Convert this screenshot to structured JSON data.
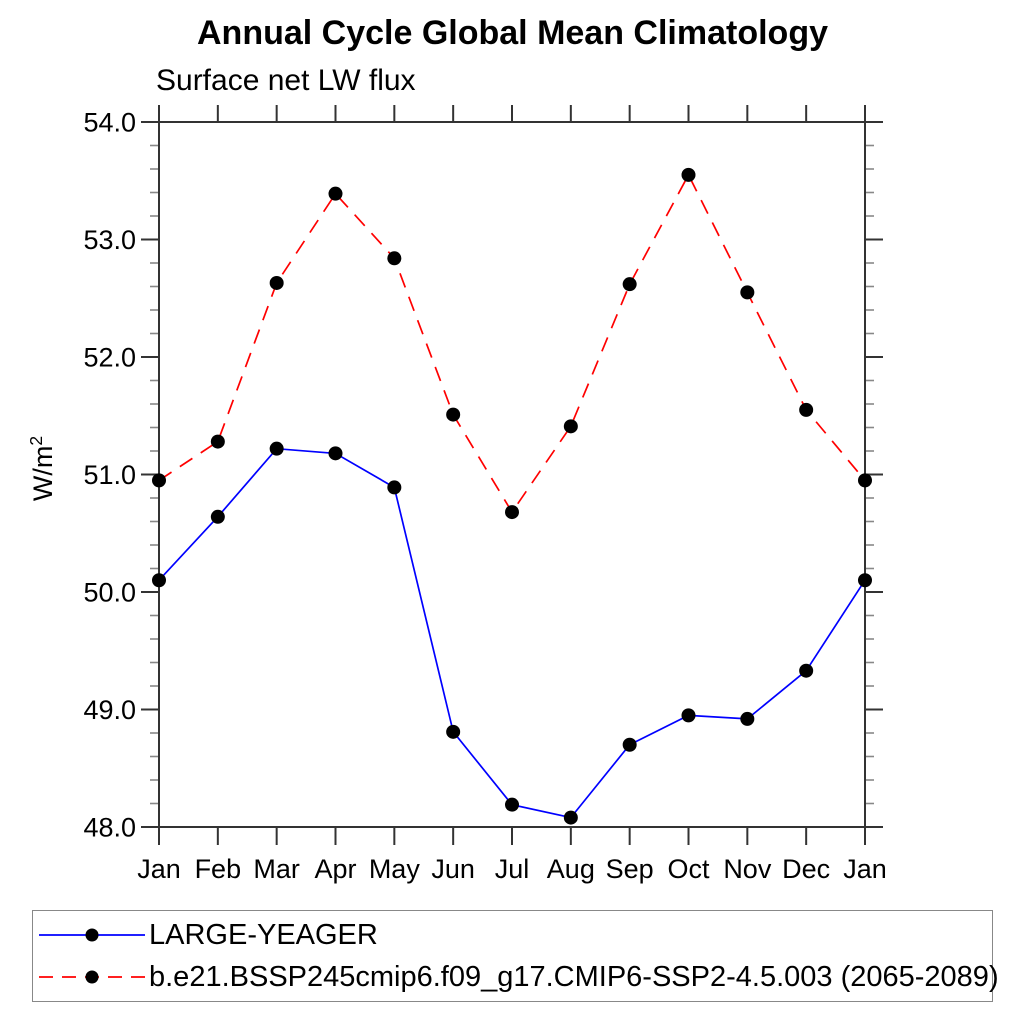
{
  "page": {
    "background": "#ffffff"
  },
  "chart_data": {
    "type": "line",
    "title": "Annual Cycle Global Mean Climatology",
    "subtitle": "Surface net LW flux",
    "ylabel_base": "W/m",
    "ylabel_exponent": "2",
    "x_categories": [
      "Jan",
      "Feb",
      "Mar",
      "Apr",
      "May",
      "Jun",
      "Jul",
      "Aug",
      "Sep",
      "Oct",
      "Nov",
      "Dec",
      "Jan"
    ],
    "ylim": [
      48.0,
      54.0
    ],
    "ytick_major_interval": 1.0,
    "ytick_minor_interval": 0.2,
    "ytick_labels": [
      "48.0",
      "49.0",
      "50.0",
      "51.0",
      "52.0",
      "53.0",
      "54.0"
    ],
    "grid": false,
    "legend_position": "bottom-left",
    "axis_color": "#333333",
    "minor_tick_color": "#888888",
    "marker_color": "#000000",
    "series": [
      {
        "name": "LARGE-YEAGER",
        "color": "#0000ff",
        "line_style": "solid",
        "marker": "filled-circle",
        "values": [
          50.1,
          50.64,
          51.22,
          51.18,
          50.89,
          48.81,
          48.19,
          48.08,
          48.7,
          48.95,
          48.92,
          49.33,
          50.1
        ]
      },
      {
        "name": "b.e21.BSSP245cmip6.f09_g17.CMIP6-SSP2-4.5.003 (2065-2089)",
        "color": "#ff0000",
        "line_style": "dashed",
        "marker": "filled-circle",
        "values": [
          50.95,
          51.28,
          52.63,
          53.39,
          52.84,
          51.51,
          50.68,
          51.41,
          52.62,
          53.55,
          52.55,
          51.55,
          50.95
        ]
      }
    ]
  }
}
